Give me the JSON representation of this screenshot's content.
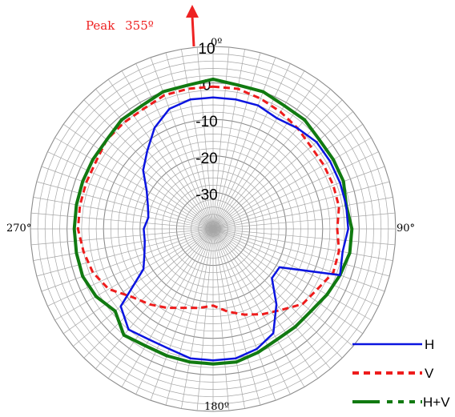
{
  "chart_data": {
    "type": "polar-line",
    "annotation": {
      "label": "Peak",
      "value": "355º",
      "angle_deg": 355
    },
    "radial_ticks": [
      "10",
      "0",
      "-10",
      "-20",
      "-30"
    ],
    "radial_range": [
      -40,
      10
    ],
    "angle_labels": {
      "a0": "0º",
      "a90": "90°",
      "a180": "180º",
      "a270": "270°"
    },
    "grid": true,
    "legend_position": "bottom-right",
    "colors": {
      "H": "#0a14e0",
      "V": "#ee1c1c",
      "HV": "#117a11",
      "annotation": "#ee2222",
      "grid": "#a6a6a6"
    },
    "angles": [
      0,
      10,
      20,
      30,
      40,
      50,
      60,
      70,
      80,
      90,
      100,
      110,
      120,
      130,
      140,
      150,
      160,
      170,
      180,
      190,
      200,
      210,
      220,
      230,
      240,
      250,
      260,
      270,
      280,
      290,
      300,
      310,
      320,
      330,
      340,
      350
    ],
    "series": [
      {
        "name": "H",
        "values": [
          -4,
          -4,
          -4,
          -5,
          -4,
          -3,
          -3,
          -3,
          -3,
          -3,
          -4,
          -3,
          -19,
          -19,
          -13,
          -7,
          -5,
          -4,
          -4,
          -4,
          -5,
          -5,
          -4,
          -7,
          -18,
          -20,
          -21,
          -21,
          -22,
          -21,
          -19,
          -15,
          -12,
          -8,
          -5,
          -4
        ]
      },
      {
        "name": "V",
        "values": [
          -1,
          -1,
          -2,
          -3,
          -4,
          -5,
          -5,
          -5,
          -5,
          -6,
          -5,
          -5,
          -7,
          -8,
          -11,
          -13,
          -15,
          -17,
          -19,
          -18,
          -17,
          -15,
          -13,
          -11,
          -7,
          -5,
          -4,
          -3,
          -3,
          -3,
          -3,
          -2,
          -2,
          -2,
          -1,
          -1
        ]
      },
      {
        "name": "H+V",
        "values": [
          1,
          0,
          0,
          -1,
          -1,
          -2,
          -2,
          -2,
          -3,
          -2,
          -2,
          -3,
          -4,
          -5,
          -5,
          -5,
          -4,
          -3,
          -3,
          -3,
          -3,
          -3,
          -2,
          -5,
          -3,
          -2,
          -2,
          -2,
          -2,
          -2,
          -2,
          -2,
          -1,
          -1,
          0,
          0
        ]
      }
    ]
  }
}
